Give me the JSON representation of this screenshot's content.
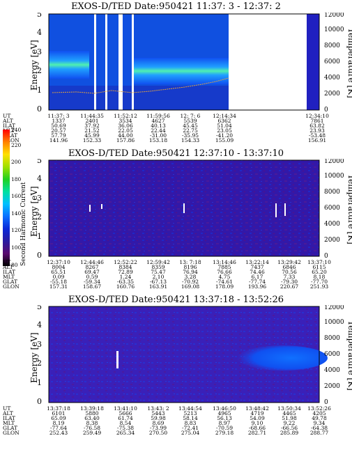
{
  "panels": [
    {
      "title": "EXOS-D/TED   Date:950421  11:37: 3 - 12:37: 2",
      "ylabel": "Energy [eV]",
      "y2label": "Temperature [K]",
      "yticks": [
        "0",
        "1",
        "2",
        "3",
        "4",
        "5"
      ],
      "y2ticks": [
        "0",
        "2000",
        "4000",
        "6000",
        "8000",
        "10000",
        "12000"
      ],
      "rows": [
        {
          "label": "UT",
          "values": [
            "11:37: 3",
            "11:44:35",
            "11:52:12",
            "11:59:56",
            "12: 7: 6",
            "12:14:34",
            "12:34:10"
          ]
        },
        {
          "label": "ALT",
          "values": [
            "1337",
            "2401",
            "3534",
            "4627",
            "5539",
            "6362",
            "7861"
          ]
        },
        {
          "label": "ILAT",
          "values": [
            "50.69",
            "37.92",
            "36.06",
            "40.13",
            "45.45",
            "51.04",
            "63.82"
          ]
        },
        {
          "label": "MLT",
          "values": [
            "20.57",
            "21.52",
            "22.05",
            "22.44",
            "22.75",
            "23.05",
            "23.93"
          ]
        },
        {
          "label": "GLAT",
          "values": [
            "57.79",
            "45.99",
            "44.00",
            "-31.00",
            "-35.95",
            "-41.20",
            "-53.48"
          ]
        },
        {
          "label": "GLON",
          "values": [
            "141.96",
            "152.33",
            "157.86",
            "153.18",
            "154.33",
            "155.09",
            "156.91"
          ]
        }
      ]
    },
    {
      "title": "EXOS-D/TED   Date:950421  12:37:10 - 13:37:10",
      "ylabel": "Energy [eV]",
      "y2label": "Temperature [K]",
      "yticks": [
        "0",
        "1",
        "2",
        "3",
        "4",
        "5"
      ],
      "y2ticks": [
        "0",
        "2000",
        "4000",
        "6000",
        "8000",
        "10000",
        "12000"
      ],
      "rows": [
        {
          "label": "UT",
          "values": [
            "12:37:10",
            "12:44:46",
            "12:52:22",
            "12:59:42",
            "13: 7:18",
            "13:14:46",
            "13:22:14",
            "13:29:42",
            "13:37:10"
          ]
        },
        {
          "label": "ALT",
          "values": [
            "8004",
            "8267",
            "8384",
            "8359",
            "8196",
            "7885",
            "7437",
            "6846",
            "6115"
          ]
        },
        {
          "label": "ILAT",
          "values": [
            "65.51",
            "69.47",
            "72.89",
            "75.47",
            "76.94",
            "76.66",
            "74.46",
            "70.56",
            "65.20"
          ]
        },
        {
          "label": "MLT",
          "values": [
            "0.09",
            "0.59",
            "1.24",
            "2.10",
            "3.28",
            "4.75",
            "6.17",
            "7.33",
            "8.18"
          ]
        },
        {
          "label": "GLAT",
          "values": [
            "-55.18",
            "-59.34",
            "-63.35",
            "-67.13",
            "-70.92",
            "-74.61",
            "-77.74",
            "-79.30",
            "-77.70"
          ]
        },
        {
          "label": "GLON",
          "values": [
            "157.31",
            "158.67",
            "160.76",
            "163.91",
            "169.08",
            "178.09",
            "193.96",
            "220.67",
            "251.93"
          ]
        }
      ]
    },
    {
      "title": "EXOS-D/TED   Date:950421  13:37:18 - 13:52:26",
      "ylabel": "Energy [eV]",
      "y2label": "Temperature [K]",
      "yticks": [
        "0",
        "1",
        "2",
        "3",
        "4",
        "5"
      ],
      "y2ticks": [
        "0",
        "2000",
        "4000",
        "6000",
        "8000",
        "10000",
        "12000"
      ],
      "rows": [
        {
          "label": "UT",
          "values": [
            "13:37:18",
            "13:39:18",
            "13:41:10",
            "13:43: 2",
            "13:44:54",
            "13:46:50",
            "13:48:42",
            "13:50:34",
            "13:52:26"
          ]
        },
        {
          "label": "ALT",
          "values": [
            "6101",
            "5880",
            "5666",
            "5443",
            "5213",
            "4965",
            "4719",
            "4465",
            "4205"
          ]
        },
        {
          "label": "ILAT",
          "values": [
            "65.09",
            "63.40",
            "61.74",
            "59.98",
            "58.14",
            "56.13",
            "54.09",
            "51.98",
            "49.78"
          ]
        },
        {
          "label": "MLT",
          "values": [
            "8.19",
            "8.38",
            "8.54",
            "8.69",
            "8.83",
            "8.97",
            "9.10",
            "9.22",
            "9.34"
          ]
        },
        {
          "label": "GLAT",
          "values": [
            "-77.64",
            "-76.58",
            "-75.38",
            "-73.99",
            "-72.41",
            "-70.59",
            "-68.66",
            "-66.56",
            "-64.38"
          ]
        },
        {
          "label": "GLON",
          "values": [
            "252.43",
            "259.49",
            "265.34",
            "270.50",
            "275.04",
            "279.18",
            "282.71",
            "285.89",
            "288.77"
          ]
        }
      ]
    }
  ],
  "colorbar": {
    "label": "Second Harmonic Current",
    "ticks": [
      "80",
      "100",
      "120",
      "140",
      "160",
      "180",
      "200",
      "220",
      "240"
    ],
    "colors": [
      "#000000",
      "#5a0a6e",
      "#2a1aa0",
      "#0a28d8",
      "#0a70ff",
      "#00c0ff",
      "#00e0a0",
      "#20d020",
      "#a0e000",
      "#ffe000",
      "#ff8000",
      "#ff0000"
    ]
  },
  "chart_data": [
    {
      "type": "heatmap",
      "title": "EXOS-D/TED   Date:950421  11:37: 3 - 12:37: 2",
      "xlabel": "UT",
      "ylabel": "Energy [eV]",
      "ylim": [
        0,
        5
      ],
      "y2label": "Temperature [K]",
      "y2lim": [
        0,
        12000
      ],
      "x": [
        "11:37: 3",
        "11:44:35",
        "11:52:12",
        "11:59:56",
        "12: 7: 6",
        "12:14:34",
        "12:34:10"
      ]
    },
    {
      "type": "heatmap",
      "title": "EXOS-D/TED   Date:950421  12:37:10 - 13:37:10",
      "xlabel": "UT",
      "ylabel": "Energy [eV]",
      "ylim": [
        0,
        5
      ],
      "y2label": "Temperature [K]",
      "y2lim": [
        0,
        12000
      ],
      "x": [
        "12:37:10",
        "12:44:46",
        "12:52:22",
        "12:59:42",
        "13: 7:18",
        "13:14:46",
        "13:22:14",
        "13:29:42",
        "13:37:10"
      ]
    },
    {
      "type": "heatmap",
      "title": "EXOS-D/TED   Date:950421  13:37:18 - 13:52:26",
      "xlabel": "UT",
      "ylabel": "Energy [eV]",
      "ylim": [
        0,
        5
      ],
      "y2label": "Temperature [K]",
      "y2lim": [
        0,
        12000
      ],
      "x": [
        "13:37:18",
        "13:39:18",
        "13:41:10",
        "13:43: 2",
        "13:44:54",
        "13:46:50",
        "13:48:42",
        "13:50:34",
        "13:52:26"
      ]
    }
  ]
}
